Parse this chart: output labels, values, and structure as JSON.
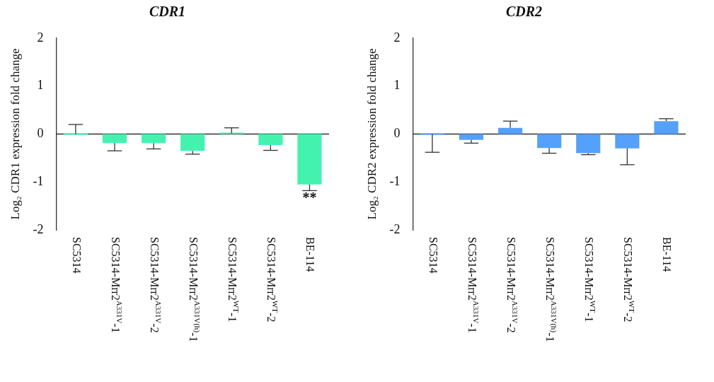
{
  "chart_data": [
    {
      "type": "bar",
      "title": "CDR1",
      "ylabel": "Log₂ CDR1 expression fold change",
      "categories": [
        "SC5314",
        "SC5314-Mrr2$^{A331V}$-1",
        "SC5314-Mrr2$^{A331V}$-2",
        "SC5314-Mrr2$^{A331V(h)}$-1",
        "SC5314-Mrr2$^{WT}$-1",
        "SC5314-Mrr2$^{WT}$-2",
        "BE-114"
      ],
      "series": [
        {
          "color": "#44f2b0",
          "values": [
            0,
            -0.19,
            -0.19,
            -0.35,
            0.02,
            -0.23,
            -1.05
          ],
          "errors": [
            [
              0,
              0.2
            ],
            [
              -0.35,
              -0.19
            ],
            [
              -0.31,
              -0.19
            ],
            [
              -0.42,
              -0.35
            ],
            [
              0.02,
              0.13
            ],
            [
              -0.34,
              -0.23
            ],
            [
              -1.18,
              -1.05
            ]
          ]
        }
      ],
      "ylim": [
        -2,
        2
      ],
      "yticks": [
        -2,
        -1,
        0,
        1,
        2
      ],
      "grid": false,
      "legend": false,
      "ref_lines": [
        {
          "axis": "y",
          "value": 0
        }
      ],
      "annotations": [
        "**"
      ]
    },
    {
      "type": "bar",
      "title": "CDR2",
      "ylabel": "Log₂ CDR2 expression fold change",
      "categories": [
        "SC5314",
        "SC5314-Mrr2$^{A331V}$-1",
        "SC5314-Mrr2$^{A331V}$-2",
        "SC5314-Mrr2$^{A331V(h)}$-1",
        "SC5314-Mrr2$^{WT}$-1",
        "SC5314-Mrr2$^{WT}$-2",
        "BE-114"
      ],
      "series": [
        {
          "color": "#55a0fa",
          "values": [
            0,
            -0.12,
            0.13,
            -0.29,
            -0.4,
            -0.3,
            0.27
          ],
          "errors": [
            [
              -0.38,
              0
            ],
            [
              -0.19,
              -0.12
            ],
            [
              0.13,
              0.27
            ],
            [
              -0.4,
              -0.29
            ],
            [
              -0.43,
              -0.4
            ],
            [
              -0.64,
              -0.3
            ],
            [
              0.27,
              0.32
            ]
          ]
        }
      ],
      "ref_lines": [
        {
          "axis": "y",
          "value": 0
        }
      ],
      "ylim": [
        -2,
        2
      ],
      "yticks": [
        -2,
        -1,
        0,
        1,
        2
      ],
      "grid": false,
      "legend": false
    }
  ]
}
